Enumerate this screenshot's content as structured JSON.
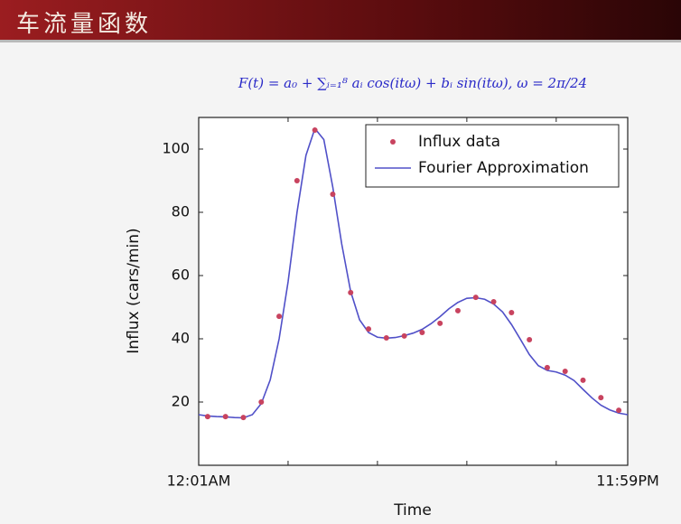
{
  "header": {
    "title": "车流量函数"
  },
  "chart_data": {
    "type": "line",
    "title": "F(t) = a₀ + ∑ᵢ₌₁⁸ aᵢ cos(itω) + bᵢ sin(itω), ω = 2π/24",
    "x_label": "Time",
    "y_label": "Influx (cars/min)",
    "xlim": [
      0,
      24
    ],
    "ylim": [
      0,
      110
    ],
    "xticks": [
      {
        "value": 0,
        "label": "12:01AM"
      },
      {
        "value": 24,
        "label": "11:59PM"
      }
    ],
    "xminorticks": [
      5,
      10,
      15,
      20
    ],
    "yticks": [
      20,
      40,
      60,
      80,
      100
    ],
    "legend": "upper right",
    "grid": false,
    "series": [
      {
        "name": "Influx data",
        "type": "scatter",
        "color": "#c8435f",
        "x": [
          0.5,
          1.5,
          2.5,
          3.5,
          4.5,
          5.5,
          6.5,
          7.5,
          8.5,
          9.5,
          10.5,
          11.5,
          12.5,
          13.5,
          14.5,
          15.5,
          16.5,
          17.5,
          18.5,
          19.5,
          20.5,
          21.5,
          22.5,
          23.5
        ],
        "values": [
          15.4,
          15.4,
          15.1,
          20,
          47.1,
          90,
          106,
          85.7,
          54.6,
          43.1,
          40.3,
          40.9,
          42,
          44.9,
          48.9,
          53.1,
          51.7,
          48.3,
          39.7,
          30.9,
          29.7,
          26.9,
          21.4,
          17.4
        ]
      },
      {
        "name": "Fourier Approximation",
        "type": "line",
        "color": "#5050c8",
        "x": [
          0,
          0.5,
          1,
          1.5,
          2,
          2.5,
          3,
          3.5,
          4,
          4.5,
          5,
          5.5,
          6,
          6.5,
          7,
          7.5,
          8,
          8.5,
          9,
          9.5,
          10,
          10.5,
          11,
          11.5,
          12,
          12.5,
          13,
          13.5,
          14,
          14.5,
          15,
          15.5,
          16,
          16.5,
          17,
          17.5,
          18,
          18.5,
          19,
          19.5,
          20,
          20.5,
          21,
          21.5,
          22,
          22.5,
          23,
          23.5,
          24
        ],
        "values": [
          16,
          15.6,
          15.4,
          15.3,
          15.1,
          15,
          16,
          19.5,
          27,
          40,
          58,
          80,
          98,
          106.5,
          103,
          88,
          70,
          55,
          46,
          42,
          40.5,
          40.2,
          40.4,
          41,
          41.8,
          43,
          44.8,
          47,
          49.5,
          51.5,
          52.8,
          53,
          52.5,
          51,
          48.5,
          44.5,
          39.8,
          35,
          31.5,
          30,
          29.5,
          28.5,
          26.8,
          24,
          21.3,
          19,
          17.5,
          16.5,
          16
        ]
      }
    ]
  }
}
